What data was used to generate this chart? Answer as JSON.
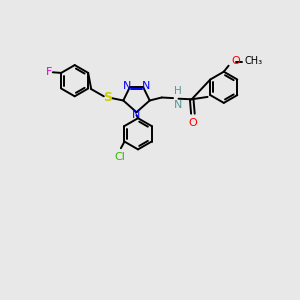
{
  "background_color": "#e8e8e8",
  "bond_color": "#000000",
  "lw": 1.4,
  "fs": 8.0,
  "colors": {
    "F": "#dd00dd",
    "Cl": "#33bb00",
    "S": "#cccc00",
    "N": "#0000ff",
    "O": "#ff0000",
    "NH": "#559999",
    "C": "#000000"
  },
  "layout": {
    "xlim": [
      0,
      10
    ],
    "ylim": [
      -3.5,
      3.5
    ]
  }
}
